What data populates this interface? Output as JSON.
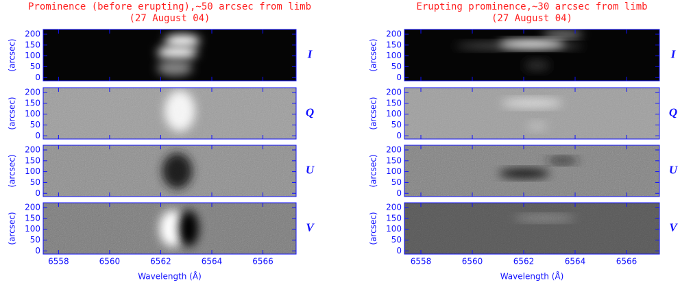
{
  "chart_data": [
    {
      "type": "image",
      "title": "Prominence (before erupting),~50 arcsec from limb",
      "subtitle": "(27 August 04)",
      "xlabel": "Wavelength (Å)",
      "ylabel": "(arcsec)",
      "xlim": [
        6557.4,
        6567.3
      ],
      "xticks": [
        6558,
        6560,
        6562,
        6564,
        6566
      ],
      "ylim": [
        -15,
        222
      ],
      "yticks": [
        0,
        50,
        100,
        150,
        200
      ],
      "panels": [
        {
          "label": "I"
        },
        {
          "label": "Q"
        },
        {
          "label": "U"
        },
        {
          "label": "V"
        }
      ],
      "title_color": "#ff2020",
      "axis_color": "#1010ff"
    },
    {
      "type": "image",
      "title": "Erupting prominence,~30 arcsec from limb",
      "subtitle": "(27 August 04)",
      "xlabel": "Wavelength (Å)",
      "ylabel": "(arcsec)",
      "xlim": [
        6557.36,
        6567.28
      ],
      "xticks": [
        6558,
        6560,
        6562,
        6564,
        6566
      ],
      "ylim": [
        -15,
        222
      ],
      "yticks": [
        0,
        50,
        100,
        150,
        200
      ],
      "panels": [
        {
          "label": "I"
        },
        {
          "label": "Q"
        },
        {
          "label": "U"
        },
        {
          "label": "V"
        }
      ],
      "title_color": "#ff2020",
      "axis_color": "#1010ff"
    }
  ]
}
